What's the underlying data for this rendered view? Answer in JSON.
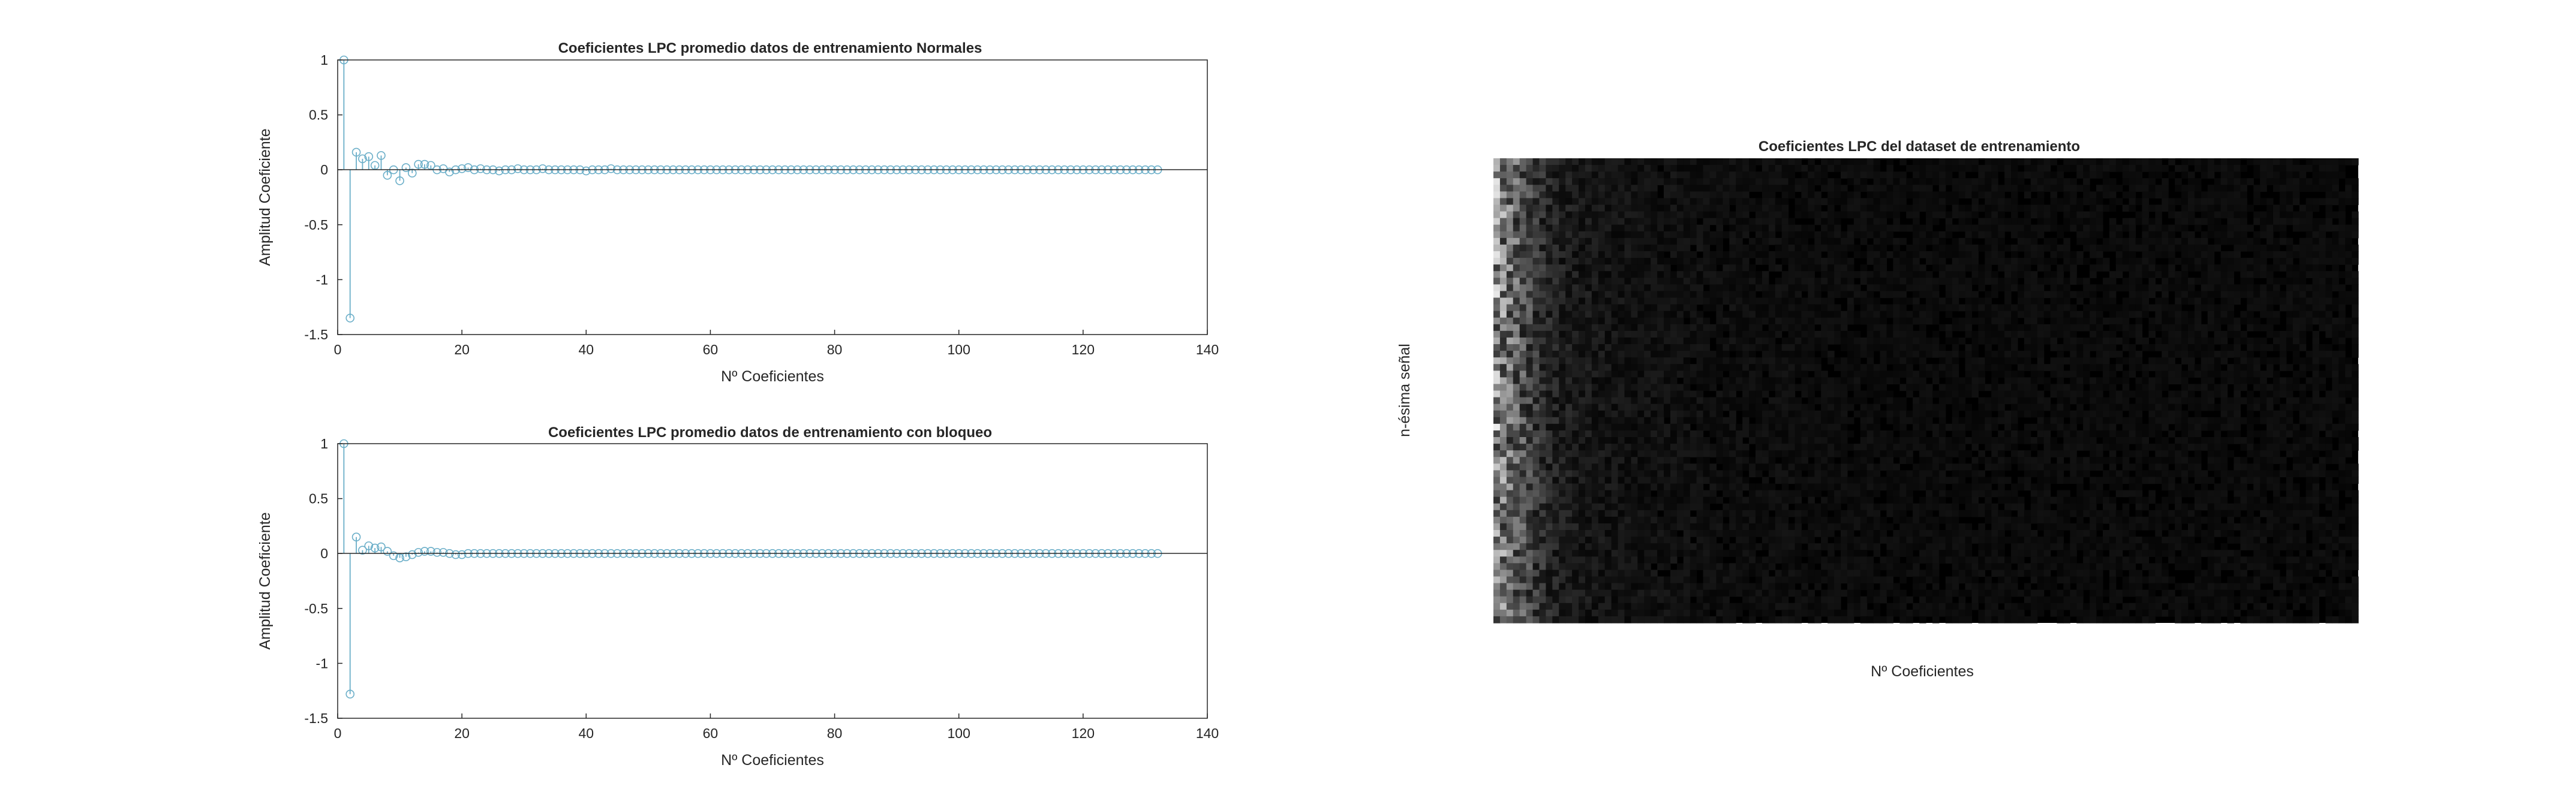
{
  "colors": {
    "stem": "#6aaec8",
    "axis": "#262626",
    "zero_line": "#262626",
    "heatmap_background": "#000000"
  },
  "chart_data": [
    {
      "type": "stem",
      "title": "Coeficientes LPC promedio datos de entrenamiento Normales",
      "xlabel": "Nº Coeficientes",
      "ylabel": "Amplitud Coeficiente",
      "xlim": [
        0,
        140
      ],
      "ylim": [
        -1.5,
        1
      ],
      "xticks": [
        "0",
        "20",
        "40",
        "60",
        "80",
        "100",
        "120",
        "140"
      ],
      "yticks": [
        "-1.5",
        "-1",
        "-0.5",
        "0",
        "0.5",
        "1"
      ],
      "grid": false,
      "x": [
        1,
        2,
        3,
        4,
        5,
        6,
        7,
        8,
        9,
        10,
        11,
        12,
        13,
        14,
        15,
        16,
        17,
        18,
        19,
        20,
        21,
        22,
        23,
        24,
        25,
        26,
        27,
        28,
        29,
        30,
        31,
        32,
        33,
        34,
        35,
        36,
        37,
        38,
        39,
        40,
        41,
        42,
        43,
        44,
        45,
        46,
        47,
        48,
        49,
        50,
        51,
        52,
        53,
        54,
        55,
        56,
        57,
        58,
        59,
        60,
        61,
        62,
        63,
        64,
        65,
        66,
        67,
        68,
        69,
        70,
        71,
        72,
        73,
        74,
        75,
        76,
        77,
        78,
        79,
        80,
        81,
        82,
        83,
        84,
        85,
        86,
        87,
        88,
        89,
        90,
        91,
        92,
        93,
        94,
        95,
        96,
        97,
        98,
        99,
        100,
        101,
        102,
        103,
        104,
        105,
        106,
        107,
        108,
        109,
        110,
        111,
        112,
        113,
        114,
        115,
        116,
        117,
        118,
        119,
        120,
        121,
        122,
        123,
        124,
        125,
        126,
        127,
        128,
        129,
        130,
        131,
        132
      ],
      "values": [
        1.0,
        -1.35,
        0.16,
        0.1,
        0.12,
        0.04,
        0.13,
        -0.05,
        0.0,
        -0.1,
        0.02,
        -0.03,
        0.05,
        0.05,
        0.04,
        0.0,
        0.01,
        -0.02,
        0.0,
        0.01,
        0.02,
        0.0,
        0.01,
        0.0,
        0.0,
        -0.01,
        0.0,
        0.0,
        0.01,
        0.0,
        0.0,
        0.0,
        0.01,
        0.0,
        0.0,
        0.0,
        0.0,
        0.0,
        0.0,
        -0.01,
        0.0,
        0.0,
        0.0,
        0.01,
        0.0,
        0.0,
        0.0,
        0.0,
        0.0,
        0.0,
        0.0,
        0.0,
        0.0,
        0.0,
        0.0,
        0.0,
        0.0,
        0.0,
        0.0,
        0.0,
        0.0,
        0.0,
        0.0,
        0.0,
        0.0,
        0.0,
        0.0,
        0.0,
        0.0,
        0.0,
        0.0,
        0.0,
        0.0,
        0.0,
        0.0,
        0.0,
        0.0,
        0.0,
        0.0,
        0.0,
        0.0,
        0.0,
        0.0,
        0.0,
        0.0,
        0.0,
        0.0,
        0.0,
        0.0,
        0.0,
        0.0,
        0.0,
        0.0,
        0.0,
        0.0,
        0.0,
        0.0,
        0.0,
        0.0,
        0.0,
        0.0,
        0.0,
        0.0,
        0.0,
        0.0,
        0.0,
        0.0,
        0.0,
        0.0,
        0.0,
        0.0,
        0.0,
        0.0,
        0.0,
        0.0,
        0.0,
        0.0,
        0.0,
        0.0,
        0.0,
        0.0,
        0.0,
        0.0,
        0.0,
        0.0,
        0.0,
        0.0,
        0.0,
        0.0,
        0.0,
        0.0,
        0.0
      ]
    },
    {
      "type": "stem",
      "title": "Coeficientes LPC promedio datos de entrenamiento con bloqueo",
      "xlabel": "Nº Coeficientes",
      "ylabel": "Amplitud Coeficiente",
      "xlim": [
        0,
        140
      ],
      "ylim": [
        -1.5,
        1
      ],
      "xticks": [
        "0",
        "20",
        "40",
        "60",
        "80",
        "100",
        "120",
        "140"
      ],
      "yticks": [
        "-1.5",
        "-1",
        "-0.5",
        "0",
        "0.5",
        "1"
      ],
      "grid": false,
      "x": [
        1,
        2,
        3,
        4,
        5,
        6,
        7,
        8,
        9,
        10,
        11,
        12,
        13,
        14,
        15,
        16,
        17,
        18,
        19,
        20,
        21,
        22,
        23,
        24,
        25,
        26,
        27,
        28,
        29,
        30,
        31,
        32,
        33,
        34,
        35,
        36,
        37,
        38,
        39,
        40,
        41,
        42,
        43,
        44,
        45,
        46,
        47,
        48,
        49,
        50,
        51,
        52,
        53,
        54,
        55,
        56,
        57,
        58,
        59,
        60,
        61,
        62,
        63,
        64,
        65,
        66,
        67,
        68,
        69,
        70,
        71,
        72,
        73,
        74,
        75,
        76,
        77,
        78,
        79,
        80,
        81,
        82,
        83,
        84,
        85,
        86,
        87,
        88,
        89,
        90,
        91,
        92,
        93,
        94,
        95,
        96,
        97,
        98,
        99,
        100,
        101,
        102,
        103,
        104,
        105,
        106,
        107,
        108,
        109,
        110,
        111,
        112,
        113,
        114,
        115,
        116,
        117,
        118,
        119,
        120,
        121,
        122,
        123,
        124,
        125,
        126,
        127,
        128,
        129,
        130,
        131,
        132
      ],
      "values": [
        1.0,
        -1.28,
        0.15,
        0.03,
        0.07,
        0.05,
        0.06,
        0.02,
        -0.02,
        -0.04,
        -0.03,
        -0.01,
        0.01,
        0.02,
        0.02,
        0.01,
        0.01,
        0.0,
        -0.01,
        -0.01,
        0.0,
        0.0,
        0.0,
        0.0,
        0.0,
        0.0,
        0.0,
        0.0,
        0.0,
        0.0,
        0.0,
        0.0,
        0.0,
        0.0,
        0.0,
        0.0,
        0.0,
        0.0,
        0.0,
        0.0,
        0.0,
        0.0,
        0.0,
        0.0,
        0.0,
        0.0,
        0.0,
        0.0,
        0.0,
        0.0,
        0.0,
        0.0,
        0.0,
        0.0,
        0.0,
        0.0,
        0.0,
        0.0,
        0.0,
        0.0,
        0.0,
        0.0,
        0.0,
        0.0,
        0.0,
        0.0,
        0.0,
        0.0,
        0.0,
        0.0,
        0.0,
        0.0,
        0.0,
        0.0,
        0.0,
        0.0,
        0.0,
        0.0,
        0.0,
        0.0,
        0.0,
        0.0,
        0.0,
        0.0,
        0.0,
        0.0,
        0.0,
        0.0,
        0.0,
        0.0,
        0.0,
        0.0,
        0.0,
        0.0,
        0.0,
        0.0,
        0.0,
        0.0,
        0.0,
        0.0,
        0.0,
        0.0,
        0.0,
        0.0,
        0.0,
        0.0,
        0.0,
        0.0,
        0.0,
        0.0,
        0.0,
        0.0,
        0.0,
        0.0,
        0.0,
        0.0,
        0.0,
        0.0,
        0.0,
        0.0,
        0.0,
        0.0,
        0.0,
        0.0,
        0.0,
        0.0,
        0.0,
        0.0,
        0.0,
        0.0,
        0.0,
        0.0
      ]
    },
    {
      "type": "heatmap",
      "title": "Coeficientes LPC del dataset de entrenamiento",
      "xlabel": "Nº Coeficientes",
      "ylabel": "n-ésima señal",
      "colormap": "gray",
      "n_columns": 132,
      "n_rows": 70,
      "ticks_shown": false,
      "intensity_by_column": [
        0.72,
        0.6,
        0.52,
        0.45,
        0.38,
        0.32,
        0.26,
        0.22,
        0.18,
        0.16,
        0.14,
        0.13,
        0.12,
        0.11,
        0.11,
        0.1,
        0.1,
        0.09,
        0.09,
        0.09,
        0.085,
        0.085,
        0.08,
        0.08,
        0.08,
        0.075,
        0.075,
        0.075,
        0.07,
        0.07,
        0.07,
        0.07,
        0.065,
        0.065,
        0.065,
        0.065,
        0.065,
        0.06,
        0.06,
        0.06,
        0.06,
        0.06,
        0.06,
        0.06,
        0.06,
        0.06,
        0.055,
        0.055,
        0.055,
        0.055,
        0.055,
        0.055,
        0.055,
        0.055,
        0.055,
        0.055,
        0.055,
        0.055,
        0.05,
        0.05,
        0.05,
        0.05,
        0.05,
        0.05,
        0.05,
        0.05,
        0.05,
        0.05,
        0.05,
        0.05,
        0.05,
        0.05,
        0.05,
        0.05,
        0.05,
        0.05,
        0.05,
        0.05,
        0.05,
        0.05,
        0.05,
        0.05,
        0.05,
        0.05,
        0.05,
        0.05,
        0.05,
        0.05,
        0.05,
        0.05,
        0.05,
        0.05,
        0.05,
        0.05,
        0.05,
        0.05,
        0.05,
        0.05,
        0.05,
        0.05,
        0.05,
        0.05,
        0.05,
        0.05,
        0.05,
        0.05,
        0.05,
        0.05,
        0.05,
        0.05,
        0.05,
        0.05,
        0.05,
        0.05,
        0.05,
        0.05,
        0.05,
        0.05,
        0.05,
        0.05,
        0.05,
        0.05,
        0.05,
        0.05,
        0.05,
        0.05,
        0.05,
        0.05,
        0.05,
        0.05,
        0.05,
        0.05
      ]
    }
  ]
}
